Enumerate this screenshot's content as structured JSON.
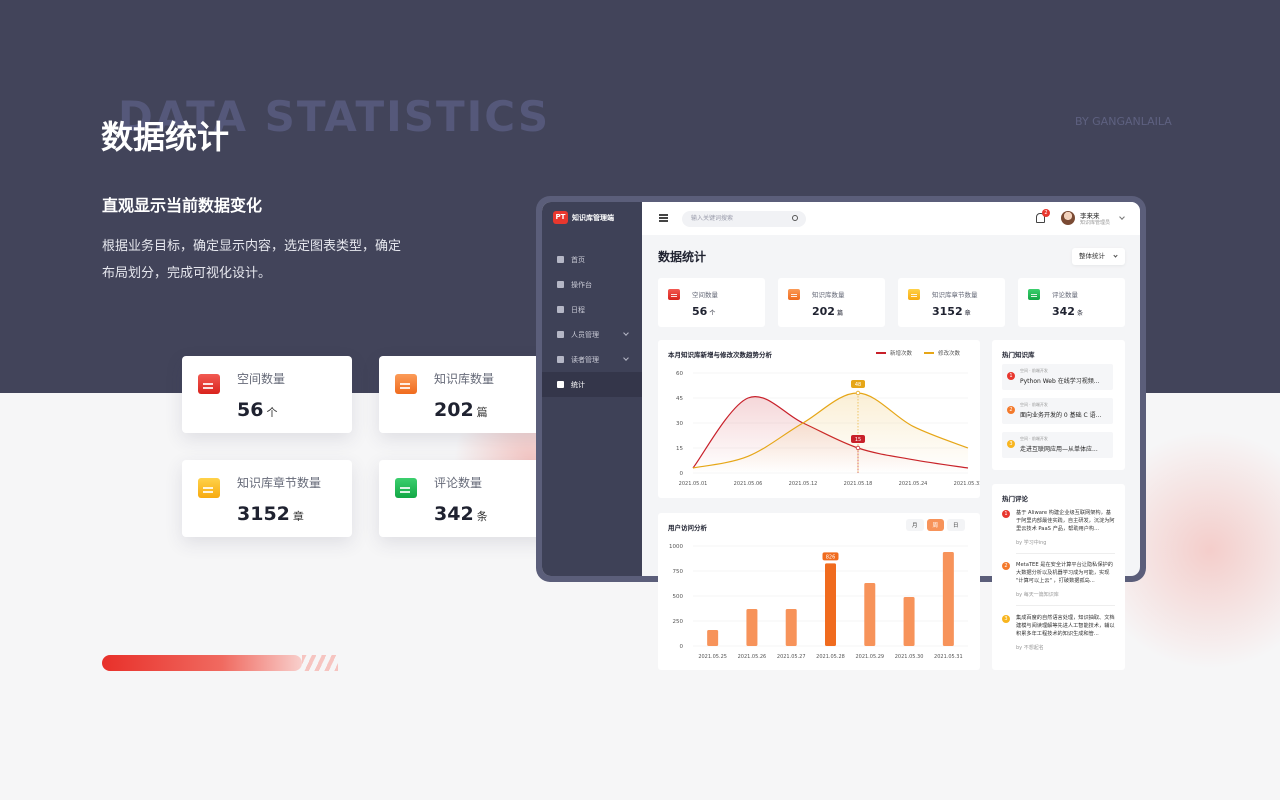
{
  "hero": {
    "bg_word": "DATA STATISTICS",
    "title": "数据统计",
    "credit": "BY GANGANLAILA",
    "subtitle": "直观显示当前数据变化",
    "description": "根据业务目标，确定显示内容，选定图表类型，确定布局划分，完成可视化设计。"
  },
  "stat_cards": [
    {
      "label": "空间数量",
      "value": "56",
      "unit": "个",
      "icon": "space-icon",
      "color": "#e8372e"
    },
    {
      "label": "知识库数量",
      "value": "202",
      "unit": "篇",
      "icon": "knowledge-base-icon",
      "color": "#f47a2c"
    },
    {
      "label": "知识库章节数量",
      "value": "3152",
      "unit": "章",
      "icon": "chapter-icon",
      "color": "#f8b51f"
    },
    {
      "label": "评论数量",
      "value": "342",
      "unit": "条",
      "icon": "comment-icon",
      "color": "#1fb655"
    }
  ],
  "app": {
    "logo_badge": "PT",
    "logo_name": "知识库管理端",
    "nav": [
      {
        "label": "首页",
        "icon": "home-icon",
        "active": false
      },
      {
        "label": "操作台",
        "icon": "console-icon",
        "active": false
      },
      {
        "label": "日程",
        "icon": "calendar-icon",
        "active": false
      },
      {
        "label": "人员管理",
        "icon": "people-icon",
        "active": false,
        "expandable": true
      },
      {
        "label": "读者管理",
        "icon": "reader-icon",
        "active": false,
        "expandable": true
      },
      {
        "label": "统计",
        "icon": "stats-icon",
        "active": true
      }
    ],
    "search_placeholder": "输入关键词搜索",
    "notification_count": "2",
    "user_name": "李来来",
    "user_role": "知识库管理员",
    "page_title": "数据统计",
    "filter_label": "整体统计"
  },
  "trend_panel": {
    "title": "本月知识库新增与修改次数趋势分析",
    "legend": [
      "新增次数",
      "修改次数"
    ]
  },
  "visit_panel": {
    "title": "用户访问分析",
    "tabs": [
      "月",
      "周",
      "日"
    ],
    "active_tab": "周"
  },
  "hot_kb": {
    "title": "热门知识库",
    "items": [
      {
        "rank": "1",
        "meta": "空间 · 前端开发",
        "title": "Python Web 在线学习视频...",
        "color": "#e8372e"
      },
      {
        "rank": "2",
        "meta": "空间 · 前端开发",
        "title": "面向业务开发的 0 基础 C 语...",
        "color": "#f47a2c"
      },
      {
        "rank": "3",
        "meta": "空间 · 前端开发",
        "title": "走进互联网应用—从单体应...",
        "color": "#f8b51f"
      }
    ]
  },
  "hot_comments": {
    "title": "热门评论",
    "items": [
      {
        "rank": "1",
        "text": "基于 Aliware 构建企业级互联网架构，基于阿里内部最佳实践，自主研发，沉淀为阿里云技术 PaaS 产品，帮助用户构...",
        "by": "by 学习中ing",
        "color": "#e8372e"
      },
      {
        "rank": "2",
        "text": "MetaTEE 是在安全计算平台让隐私保护的大数据分析以及机器学习成为可能，实现 \"计算可以上云\" ，打破数据孤岛...",
        "by": "by 每天一篇知识库",
        "color": "#f47a2c"
      },
      {
        "rank": "3",
        "text": "集成百度的自然语言处理，知识抽取、文档建模与阅读理解等先进人工智能技术，辅以积累多年工程技术的知识生成和管...",
        "by": "by 不想起名",
        "color": "#f8b51f"
      }
    ]
  },
  "chart_data": [
    {
      "type": "line",
      "title": "本月知识库新增与修改次数趋势分析",
      "x": [
        "2021.05.01",
        "2021.05.06",
        "2021.05.12",
        "2021.05.18",
        "2021.05.24",
        "2021.05.31"
      ],
      "ylim": [
        0,
        60
      ],
      "yticks": [
        0,
        15,
        30,
        45,
        60
      ],
      "series": [
        {
          "name": "新增次数",
          "color": "#c8202a",
          "values": [
            3,
            45,
            30,
            15,
            8,
            3
          ]
        },
        {
          "name": "修改次数",
          "color": "#e6a617",
          "values": [
            3,
            10,
            30,
            48,
            28,
            15
          ]
        }
      ],
      "annotations": [
        {
          "series": "修改次数",
          "x": "2021.05.18",
          "label": "48"
        },
        {
          "series": "新增次数",
          "x": "2021.05.18",
          "label": "15"
        }
      ],
      "legend": "top-right",
      "grid": true
    },
    {
      "type": "bar",
      "title": "用户访问分析",
      "categories": [
        "2021.05.25",
        "2021.05.26",
        "2021.05.27",
        "2021.05.28",
        "2021.05.29",
        "2021.05.30",
        "2021.05.31"
      ],
      "values": [
        160,
        370,
        370,
        826,
        630,
        490,
        940
      ],
      "highlight_index": 3,
      "highlight_label": "826",
      "ylim": [
        0,
        1000
      ],
      "yticks": [
        0,
        250,
        500,
        750,
        1000
      ],
      "color": "#f7935a",
      "highlight_color": "#f06b1e",
      "grid": true
    }
  ]
}
